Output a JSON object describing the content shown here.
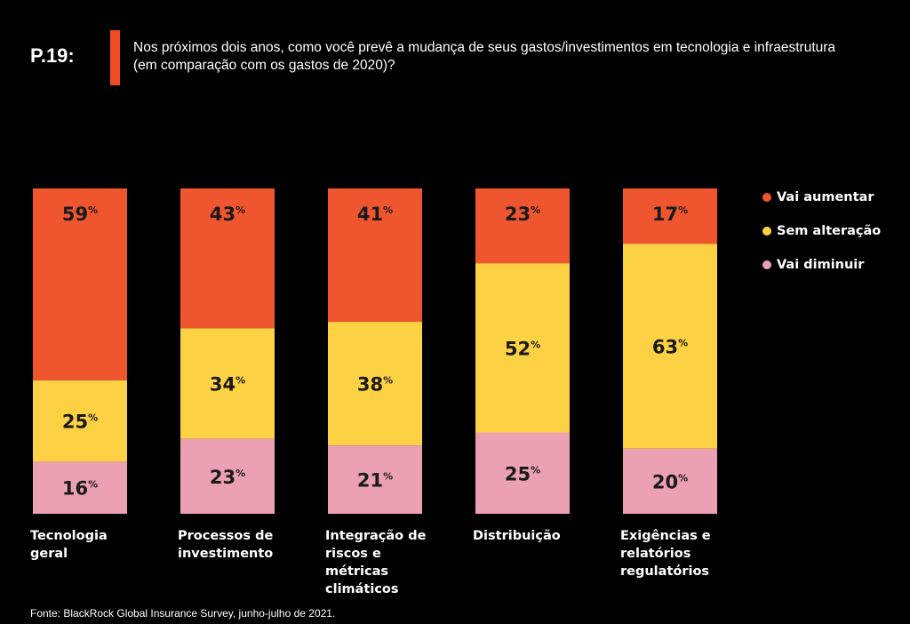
{
  "header": {
    "question_id": "P.19:",
    "question_lines": [
      "Nos próximos dois anos, como você prevê a mudança de seus gastos/investimentos em tecnologia e infraestrutura",
      "(em comparação com os gastos de 2020)?"
    ],
    "accent_color": "#ef4e23"
  },
  "chart_data": {
    "type": "bar",
    "stacked": true,
    "percent_stacked": true,
    "categories": [
      [
        "Tecnologia",
        "geral"
      ],
      [
        "Processos de",
        "investimento"
      ],
      [
        "Integração de",
        "riscos e",
        "métricas",
        "climáticos"
      ],
      [
        "Distribuição"
      ],
      [
        "Exigências e",
        "relatórios",
        "regulatórios"
      ]
    ],
    "series": [
      {
        "name": "Vai aumentar",
        "color": "#ef5630",
        "values": [
          59,
          43,
          41,
          23,
          17
        ]
      },
      {
        "name": "Sem alteração",
        "color": "#fcd144",
        "values": [
          25,
          34,
          38,
          52,
          63
        ]
      },
      {
        "name": "Vai diminuir",
        "color": "#eca0b4",
        "values": [
          16,
          23,
          21,
          25,
          20
        ]
      }
    ],
    "value_suffix": "%",
    "legend_position": "right",
    "grid": false
  },
  "footer": {
    "source": "Fonte: BlackRock Global Insurance Survey, junho-julho de 2021."
  }
}
